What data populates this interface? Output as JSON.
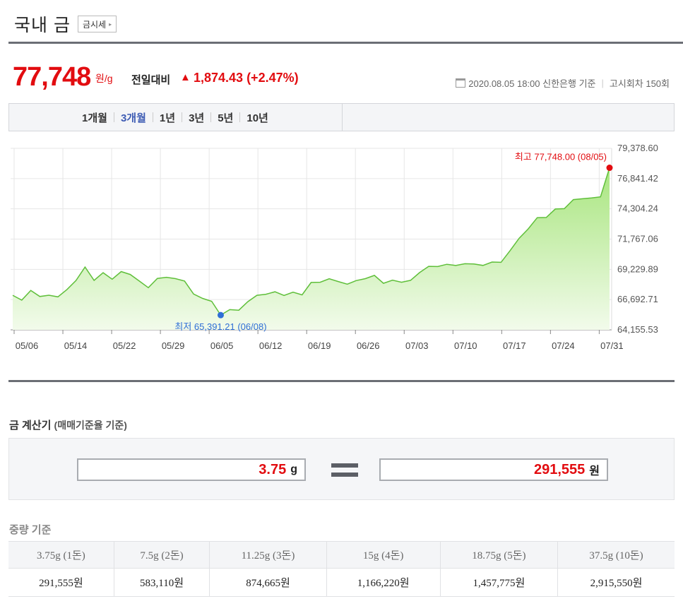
{
  "header": {
    "title": "국내 금",
    "link_label": "금시세",
    "link_arrow": "▸"
  },
  "price": {
    "current": "77,748",
    "unit": "원/g",
    "change_label": "전일대비",
    "change_icon": "▲",
    "change_value": "1,874.43 (+2.47%)",
    "timestamp": "2020.08.05 18:00 신한은행 기준",
    "notice": "고시회차 150회"
  },
  "periods": [
    {
      "label": "1개월",
      "active": false
    },
    {
      "label": "3개월",
      "active": true
    },
    {
      "label": "1년",
      "active": false
    },
    {
      "label": "3년",
      "active": false
    },
    {
      "label": "5년",
      "active": false
    },
    {
      "label": "10년",
      "active": false
    }
  ],
  "chart_data": {
    "type": "area",
    "x_ticks": [
      "05/06",
      "05/14",
      "05/22",
      "05/29",
      "06/05",
      "06/12",
      "06/19",
      "06/26",
      "07/03",
      "07/10",
      "07/17",
      "07/24",
      "07/31"
    ],
    "y_ticks": [
      "79,378.60",
      "76,841.42",
      "74,304.24",
      "71,767.06",
      "69,229.89",
      "66,692.71",
      "64,155.53"
    ],
    "ylim": [
      64155.53,
      79378.6
    ],
    "grid": true,
    "colors": {
      "line": "#5fbf3a",
      "fill_top": "#a8e57e",
      "fill_bottom": "#f2fbeb",
      "max": "#e20c10",
      "min": "#2f6fd6"
    },
    "max_label": "최고 77,748.00 (08/05)",
    "min_label": "최저 65,391.21 (06/08)",
    "values": [
      67050,
      66650,
      67460,
      66950,
      67060,
      66920,
      67540,
      68290,
      69420,
      68300,
      68950,
      68400,
      69040,
      68800,
      68250,
      67690,
      68470,
      68560,
      68450,
      68250,
      67160,
      66790,
      66550,
      65391.21,
      65850,
      65800,
      66520,
      67050,
      67140,
      67350,
      67040,
      67310,
      67090,
      68130,
      68150,
      68440,
      68210,
      67990,
      68290,
      68450,
      68720,
      68060,
      68320,
      68150,
      68310,
      68960,
      69480,
      69460,
      69650,
      69550,
      69700,
      69680,
      69560,
      69840,
      69820,
      70800,
      71840,
      72620,
      73560,
      73580,
      74290,
      74320,
      75080,
      75150,
      75220,
      75310,
      77748.0
    ],
    "max_index": 66,
    "min_index": 23
  },
  "calculator": {
    "title": "금 계산기",
    "subtitle": "(매매기준율 기준)",
    "grams": "3.75",
    "grams_unit": "g",
    "won": "291,555",
    "won_unit": "원"
  },
  "weights": {
    "title": "중량 기준",
    "headers": [
      "3.75g (1돈)",
      "7.5g (2돈)",
      "11.25g (3돈)",
      "15g (4돈)",
      "18.75g (5돈)",
      "37.5g (10돈)"
    ],
    "values": [
      "291,555원",
      "583,110원",
      "874,665원",
      "1,166,220원",
      "1,457,775원",
      "2,915,550원"
    ]
  }
}
